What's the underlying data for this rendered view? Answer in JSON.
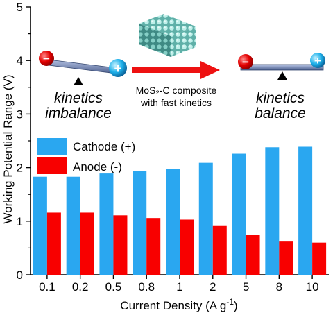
{
  "chart_data": {
    "type": "bar",
    "xlabel": "Current Density (A g",
    "xlabel_sup": "-1",
    "xlabel_end": ")",
    "ylabel": "Working Potential Range (V)",
    "ylim": [
      0,
      5
    ],
    "yticks": [
      "0",
      "1",
      "2",
      "3",
      "4",
      "5"
    ],
    "categories": [
      "0.1",
      "0.2",
      "0.5",
      "0.8",
      "1",
      "2",
      "5",
      "8",
      "10"
    ],
    "series": [
      {
        "name": "Cathode (+)",
        "color": "#2aa7f0",
        "values": [
          1.83,
          1.83,
          1.89,
          1.94,
          1.98,
          2.09,
          2.26,
          2.38,
          2.39
        ]
      },
      {
        "name": "Anode (-)",
        "color": "#f80000",
        "values": [
          1.16,
          1.16,
          1.11,
          1.06,
          1.03,
          0.91,
          0.74,
          0.62,
          0.6
        ]
      }
    ],
    "legend_position": "left",
    "grid": false
  },
  "illustration": {
    "left_caption": [
      "kinetics",
      "imbalance"
    ],
    "right_caption": [
      "kinetics",
      "balance"
    ],
    "composite_label": [
      "MoS₂-C composite",
      "with fast kinetics"
    ],
    "minus_sign": "−",
    "plus_sign": "+"
  },
  "colors": {
    "cathode": "#2aa7f0",
    "anode": "#f80000",
    "arrow": "#ee1111",
    "beam": "#5b6f9e"
  }
}
